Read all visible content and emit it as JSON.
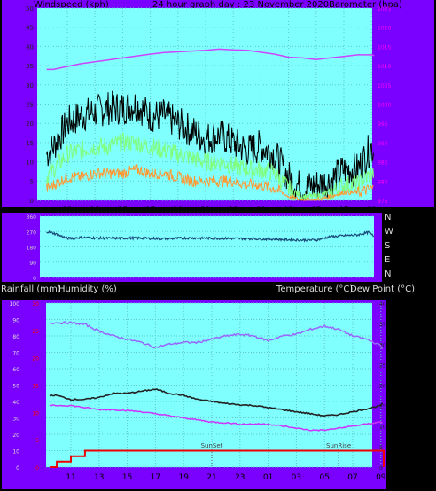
{
  "header": {
    "left": "Windspeed (kph)",
    "center": "24 hour graph day : 23 November 2020",
    "right": "Barometer (hpa)"
  },
  "direction_letters": [
    "N",
    "W",
    "S",
    "E",
    "N"
  ],
  "bottom_header": {
    "left1": "Rainfall (mm)",
    "left2": "Humidity (%)",
    "right1": "Temperature (°C)",
    "right2": "Dew Point (°C)"
  },
  "x_ticks": [
    "11",
    "13",
    "15",
    "17",
    "19",
    "21",
    "23",
    "01",
    "03",
    "05",
    "07",
    "09"
  ],
  "colors": {
    "panel": "#7a00ff",
    "plot": "#80ffff",
    "gust": "#000000",
    "wind_high": "#80ff80",
    "wind_avg": "#ff9933",
    "baro": "#cc44ff",
    "direction": "#1a4a7a",
    "humidity": "#9966ff",
    "temperature": "#222222",
    "dewpoint": "#cc33ff",
    "rain": "#ee0000",
    "tick_magenta": "#ff00ff",
    "tick_red": "#ff0000"
  },
  "chart_data": [
    {
      "type": "line",
      "title": "24 hour graph day : 23 November 2020",
      "x_ticks": [
        "11",
        "13",
        "15",
        "17",
        "19",
        "21",
        "23",
        "01",
        "03",
        "05",
        "07",
        "09"
      ],
      "y_left": {
        "label": "Windspeed (kph)",
        "lim": [
          0,
          50
        ],
        "ticks": [
          0,
          5,
          10,
          15,
          20,
          25,
          30,
          35,
          40,
          45,
          50
        ]
      },
      "y_right": {
        "label": "Barometer (hpa)",
        "lim": [
          975,
          1025
        ],
        "ticks": [
          975,
          980,
          985,
          990,
          995,
          1000,
          1005,
          1010,
          1015,
          1020,
          1025
        ]
      },
      "grid": true,
      "x": [
        9.5,
        10,
        11,
        12,
        13,
        14,
        15,
        16,
        17,
        18,
        19,
        20,
        21,
        22,
        23,
        24,
        25,
        26,
        27,
        28,
        29,
        30,
        31,
        32,
        33,
        33.2
      ],
      "series": [
        {
          "name": "Gust",
          "axis": "left",
          "values": [
            12,
            14,
            20,
            22,
            23,
            24,
            24,
            25,
            22,
            22,
            20,
            18,
            16,
            17,
            15,
            13,
            14,
            12,
            6,
            3,
            4,
            5,
            8,
            8,
            14,
            12
          ]
        },
        {
          "name": "Wind high",
          "axis": "left",
          "values": [
            6,
            8,
            12,
            13,
            14,
            14,
            15,
            15,
            14,
            13,
            12,
            11,
            10,
            10,
            9,
            8,
            8,
            7,
            3,
            1,
            1,
            2,
            4,
            4,
            7,
            7
          ]
        },
        {
          "name": "Wind avg",
          "axis": "left",
          "values": [
            3,
            4,
            6,
            6,
            7,
            7,
            7,
            8,
            7,
            7,
            6,
            5,
            5,
            5,
            5,
            4,
            4,
            3,
            1,
            0,
            0,
            1,
            2,
            2,
            3,
            3
          ]
        },
        {
          "name": "Barometer",
          "axis": "right",
          "values": [
            1009,
            1009,
            1009.8,
            1010.5,
            1011,
            1011.5,
            1012,
            1012.5,
            1013,
            1013.4,
            1013.6,
            1013.8,
            1014,
            1014.3,
            1014.1,
            1014,
            1013.5,
            1013,
            1012.2,
            1012,
            1011.6,
            1012,
            1012.4,
            1012.8,
            1012.8,
            1012.6
          ]
        }
      ]
    },
    {
      "type": "line",
      "title": "",
      "x_ticks": [],
      "y_left": {
        "label": "",
        "lim": [
          0,
          360
        ],
        "ticks": [
          "360",
          "270",
          "180",
          "90",
          "0"
        ]
      },
      "y_right": {
        "label": "",
        "lim": [
          0,
          360
        ],
        "ticks": [
          "N",
          "W",
          "S",
          "E",
          "N"
        ]
      },
      "grid": true,
      "x": [
        9.5,
        10,
        11,
        12,
        14,
        16,
        18,
        20,
        22,
        24,
        26,
        27.7,
        28,
        29,
        30,
        31,
        32,
        32.8,
        33.2
      ],
      "series": [
        {
          "name": "Wind direction",
          "axis": "left",
          "values": [
            270,
            260,
            230,
            235,
            230,
            232,
            228,
            232,
            230,
            228,
            225,
            220,
            220,
            220,
            240,
            245,
            250,
            265,
            240
          ]
        }
      ]
    },
    {
      "type": "line",
      "title": "",
      "x_ticks": [
        "11",
        "13",
        "15",
        "17",
        "19",
        "21",
        "23",
        "01",
        "03",
        "05",
        "07",
        "09"
      ],
      "y_left": {
        "label": "Humidity (%)",
        "lim": [
          0,
          100
        ],
        "ticks": [
          0,
          10,
          20,
          30,
          40,
          50,
          60,
          70,
          80,
          90,
          100
        ]
      },
      "y_left_inner": {
        "label": "Rainfall (mm)",
        "lim": [
          0,
          30
        ],
        "ticks": [
          0,
          5,
          10,
          15,
          20,
          25,
          30
        ]
      },
      "y_right": {
        "label": "Temperature (°C)",
        "lim": [
          0,
          40
        ],
        "ticks": [
          0,
          5,
          10,
          15,
          20,
          25,
          30,
          35,
          40
        ]
      },
      "annotations": [
        "SunSet",
        "SunRise"
      ],
      "grid": true,
      "x": [
        9.5,
        10,
        11,
        12,
        13,
        14,
        15,
        16,
        17,
        18,
        19,
        20,
        21,
        22,
        23,
        24,
        25,
        26,
        27,
        28,
        29,
        30,
        31,
        32,
        33,
        33.2
      ],
      "series": [
        {
          "name": "Humidity",
          "axis": "left",
          "values": [
            88,
            88,
            88,
            87,
            83,
            80,
            78,
            76,
            73,
            75,
            76,
            76,
            78,
            80,
            81,
            80,
            77,
            80,
            81,
            84,
            86,
            84,
            80,
            78,
            74,
            70
          ]
        },
        {
          "name": "Temperature",
          "axis": "right",
          "values": [
            17.5,
            17.5,
            16.5,
            16.5,
            17,
            18,
            18,
            18.5,
            19,
            18,
            17.5,
            16.5,
            16,
            15.5,
            15.2,
            15,
            14.5,
            14,
            13.5,
            13,
            12.5,
            12.8,
            13.5,
            14.2,
            15,
            16
          ]
        },
        {
          "name": "Dew point",
          "axis": "right",
          "values": [
            15,
            15,
            15,
            14.5,
            14,
            14,
            13.8,
            13.5,
            13,
            12.5,
            12,
            11.5,
            11,
            10.8,
            10.5,
            10.5,
            10.5,
            10,
            9.5,
            9,
            9,
            9.5,
            10,
            10.5,
            11,
            10.5
          ]
        },
        {
          "name": "Rainfall",
          "axis": "left_inner",
          "values": [
            0,
            1,
            2,
            3,
            3,
            3,
            3,
            3,
            3,
            3,
            3,
            3,
            3,
            3,
            3,
            3,
            3,
            3,
            3,
            3,
            3,
            3,
            3,
            3,
            3,
            0
          ]
        }
      ]
    }
  ]
}
